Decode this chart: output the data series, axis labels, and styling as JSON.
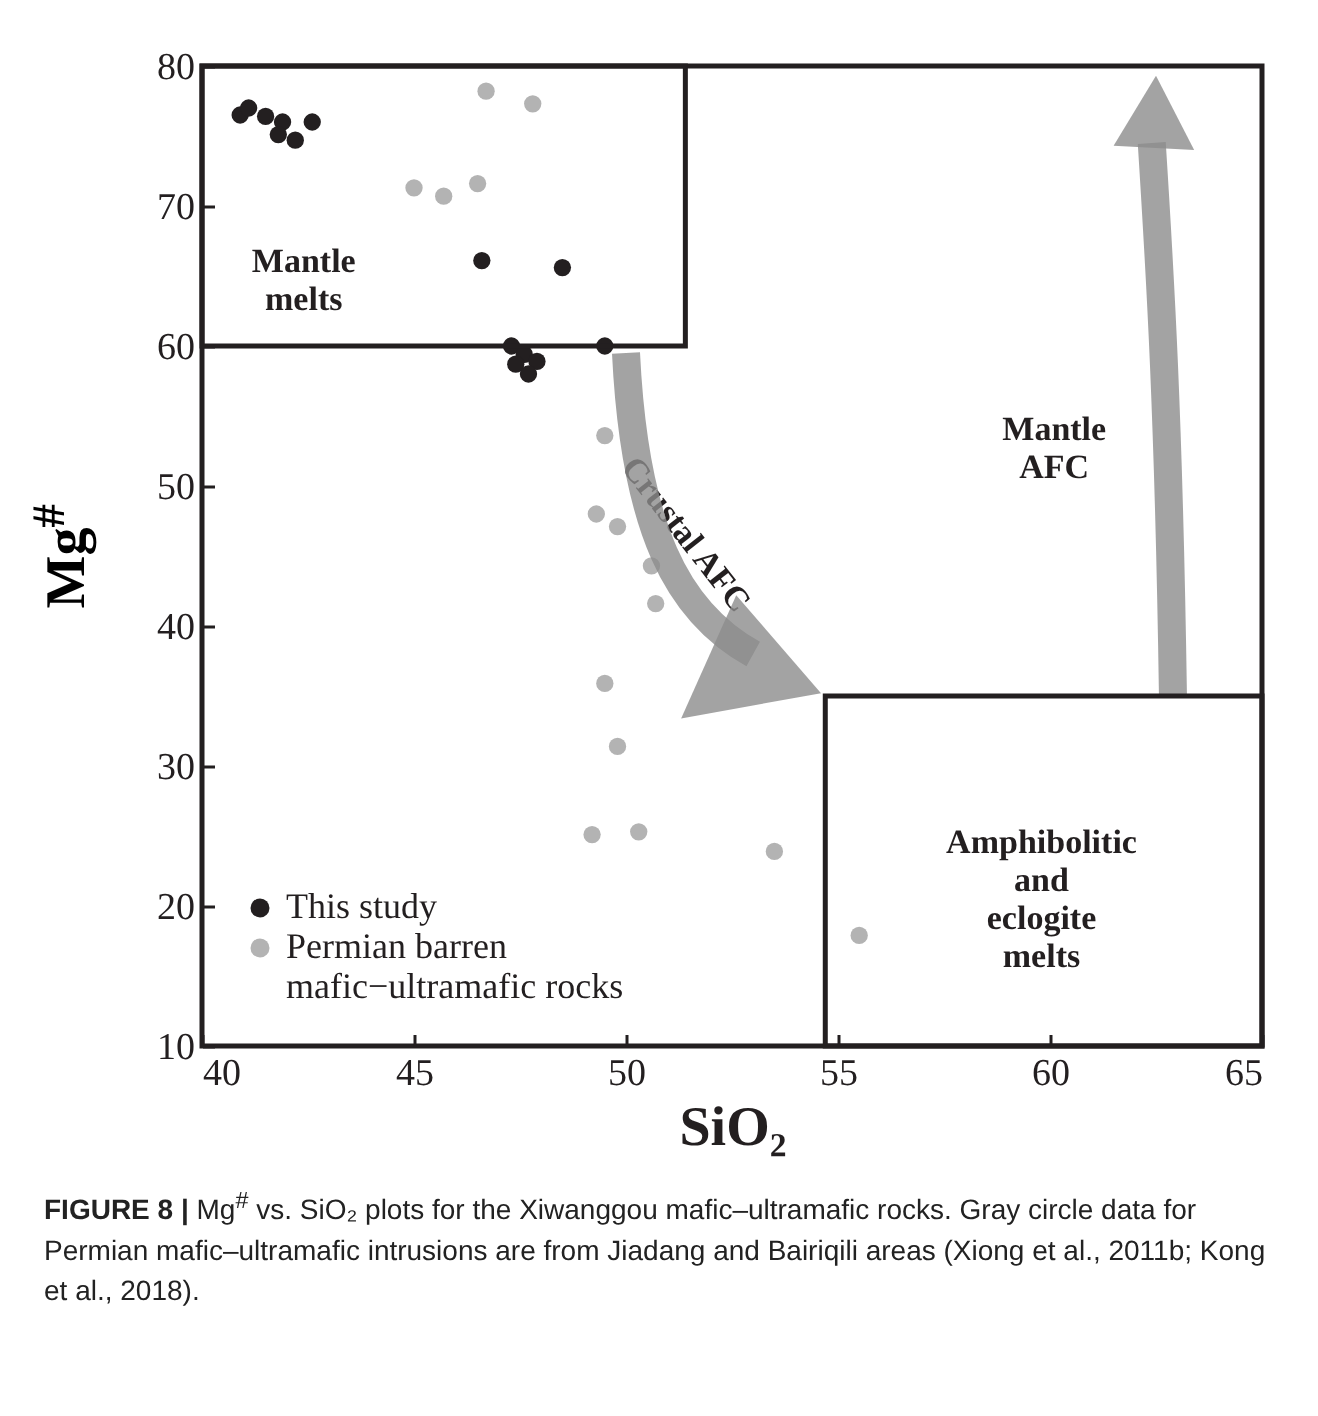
{
  "chart_data": {
    "type": "scatter",
    "xlabel": "SiO₂",
    "ylabel": "Mg$^{#}$",
    "xlim": [
      40,
      65
    ],
    "xticks": [
      40,
      45,
      50,
      55,
      60,
      65
    ],
    "ylim": [
      10,
      80
    ],
    "yticks": [
      10,
      20,
      30,
      40,
      50,
      60,
      70,
      80
    ],
    "marker": "circle",
    "legend": "bottom left",
    "grid": false,
    "series": [
      {
        "name": "This study",
        "color": "#231f20",
        "x": [
          40.9,
          41.1,
          41.5,
          41.9,
          41.8,
          42.2,
          42.6,
          46.6,
          48.5,
          47.3,
          47.6,
          47.4,
          47.9,
          47.7,
          49.5
        ],
        "values": [
          76.5,
          77.0,
          76.4,
          76.0,
          75.1,
          74.7,
          76.0,
          66.1,
          65.6,
          60.0,
          59.4,
          58.7,
          58.9,
          58.0,
          60.0
        ]
      },
      {
        "name": "Permian  barren mafic−ultramafic rocks",
        "color": "#b3b3b3",
        "x": [
          46.7,
          47.8,
          45.0,
          45.7,
          46.5,
          49.5,
          49.3,
          49.8,
          50.6,
          50.7,
          49.5,
          49.8,
          49.2,
          50.3,
          53.5,
          55.5
        ],
        "values": [
          78.2,
          77.3,
          71.3,
          70.7,
          71.6,
          53.6,
          48.0,
          47.1,
          44.3,
          41.6,
          35.9,
          31.4,
          25.1,
          25.3,
          23.9,
          17.9
        ]
      }
    ],
    "annotations": [
      "Mantle melts",
      "Crustal AFC",
      "Mantle AFC",
      "Amphibolitic and eclogite melts",
      "FIGURE 8 | Mg$^{#}$ vs. SiO₂ plots for the Xiwanggou mafic–ultramafic rocks. Gray circle data for Permian mafic–ultramafic intrusions are from Jiadang and Bairiqili areas (Xiong et al., 2011b; Kong et al., 2018)."
    ]
  }
}
